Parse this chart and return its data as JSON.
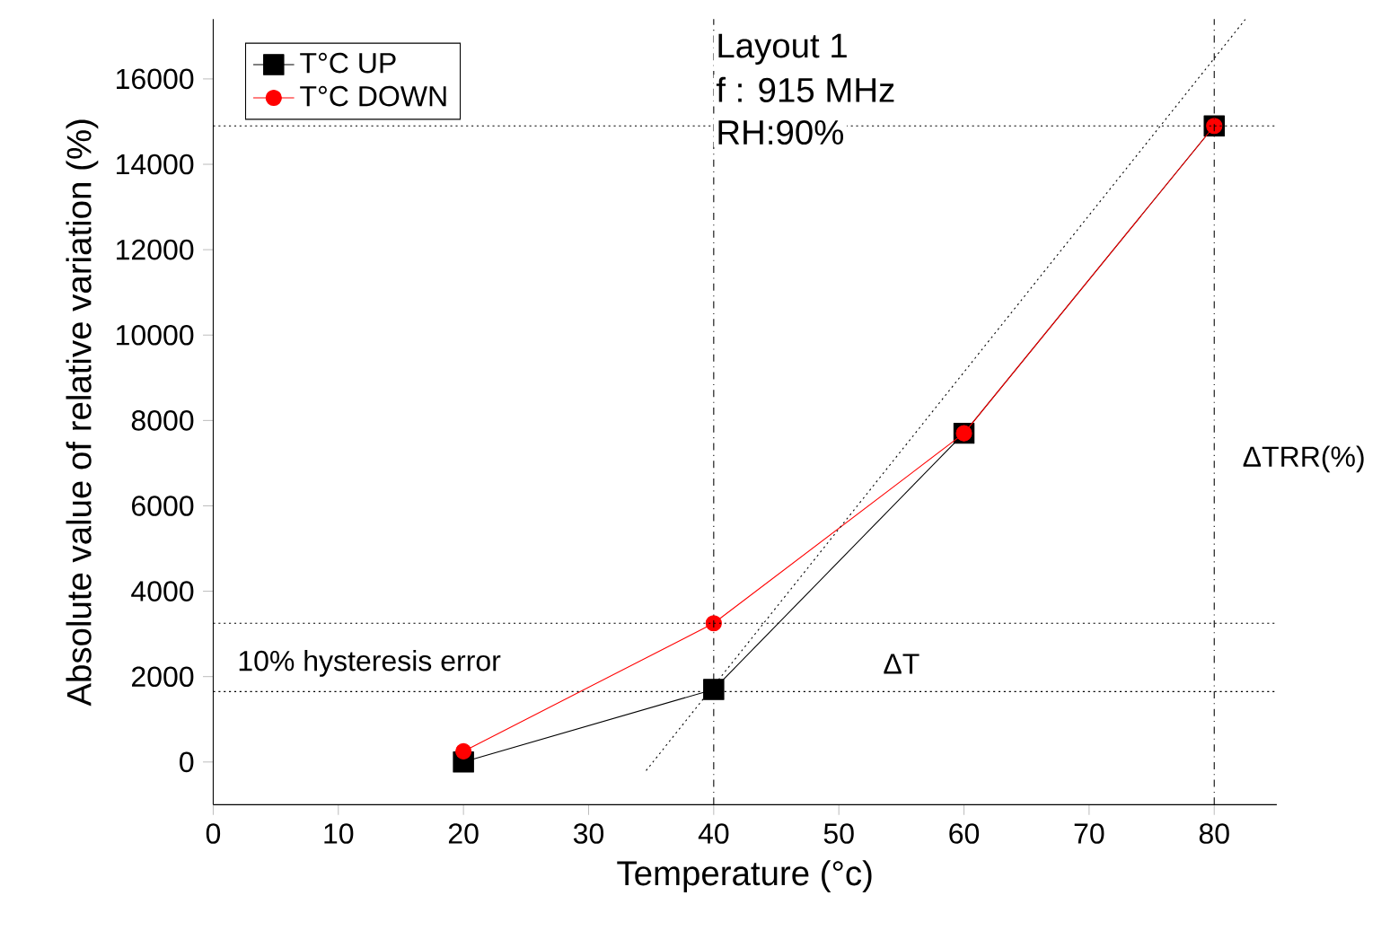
{
  "chart_data": {
    "type": "line",
    "xlabel": "Temperature (°c)",
    "ylabel": "Absolute value of  relative variation (%)",
    "xlim": [
      0,
      85
    ],
    "ylim": [
      -1000,
      17400
    ],
    "xticks": [
      0,
      10,
      20,
      30,
      40,
      50,
      60,
      70,
      80
    ],
    "yticks": [
      0,
      2000,
      4000,
      6000,
      8000,
      10000,
      12000,
      14000,
      16000
    ],
    "legend": "top left",
    "grid": false,
    "series": [
      {
        "name": "T°C UP",
        "color": "#000000",
        "marker": "square",
        "x": [
          20,
          40,
          60,
          80
        ],
        "values": [
          0,
          1700,
          7700,
          14900
        ]
      },
      {
        "name": "T°C DOWN",
        "color": "#ff0000",
        "marker": "circle",
        "x": [
          20,
          40,
          60,
          80
        ],
        "values": [
          250,
          3250,
          7700,
          14900
        ]
      },
      {
        "color": "#000000",
        "marker": "none",
        "line_style": "dotted",
        "x": [
          34.6,
          82.5
        ],
        "values": [
          -200,
          17400
        ]
      }
    ],
    "ref_lines": [
      {
        "axis": "y",
        "value": 14900,
        "line_style": "dotted",
        "color": "#000000"
      },
      {
        "axis": "y",
        "value": 1650,
        "line_style": "dotted",
        "color": "#000000"
      },
      {
        "axis": "y",
        "value": 3250,
        "line_style": "dotted",
        "color": "#000000"
      },
      {
        "axis": "x",
        "value": 40,
        "line_style": "dashdotted",
        "color": "#000000"
      },
      {
        "axis": "x",
        "value": 80,
        "line_style": "dashdotted",
        "color": "#000000"
      }
    ],
    "annotations": [
      "Layout 1",
      "f : 915 MHz",
      "RH:90%",
      "10% hysteresis error",
      {
        "text": "ΔT",
        "x": 55,
        "y": 2300
      },
      "ΔTRR(%)"
    ]
  }
}
